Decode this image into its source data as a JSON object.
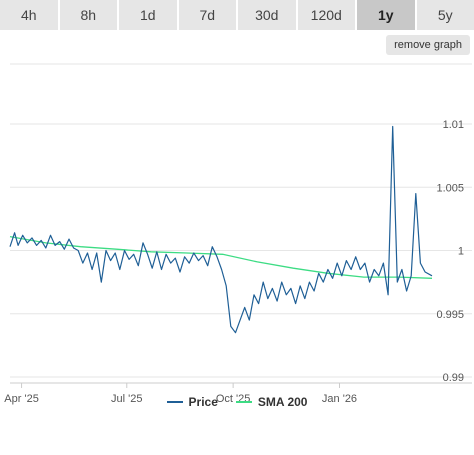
{
  "tabs": [
    {
      "label": "4h",
      "active": false
    },
    {
      "label": "8h",
      "active": false
    },
    {
      "label": "1d",
      "active": false
    },
    {
      "label": "7d",
      "active": false
    },
    {
      "label": "30d",
      "active": false
    },
    {
      "label": "120d",
      "active": false
    },
    {
      "label": "1y",
      "active": true
    },
    {
      "label": "5y",
      "active": false
    }
  ],
  "remove_graph_label": "remove graph",
  "colors": {
    "price": "#1f5f96",
    "sma": "#3ddc84",
    "grid": "#e6e6e6"
  },
  "chart_data": {
    "type": "line",
    "ylim": [
      0.99,
      1.01
    ],
    "y_ticks": [
      "1.01",
      "1.005",
      "1",
      "0.995",
      "0.99"
    ],
    "y_tick_values": [
      1.01,
      1.005,
      1.0,
      0.995,
      0.99
    ],
    "x_tick_labels": [
      "Apr '25",
      "Jul '25",
      "Oct '25",
      "Jan '26"
    ],
    "x_tick_dates": [
      "2025-04-01",
      "2025-07-01",
      "2025-10-01",
      "2026-01-01"
    ],
    "x_range": [
      "2025-03-22",
      "2026-03-22"
    ],
    "legend_position": "bottom",
    "series": [
      {
        "name": "Price",
        "color": "#1f5f96",
        "x": [
          "2025-03-22",
          "2025-03-26",
          "2025-03-29",
          "2025-04-02",
          "2025-04-06",
          "2025-04-10",
          "2025-04-14",
          "2025-04-18",
          "2025-04-22",
          "2025-04-26",
          "2025-04-30",
          "2025-05-04",
          "2025-05-08",
          "2025-05-12",
          "2025-05-16",
          "2025-05-20",
          "2025-05-24",
          "2025-05-28",
          "2025-06-01",
          "2025-06-05",
          "2025-06-09",
          "2025-06-13",
          "2025-06-17",
          "2025-06-21",
          "2025-06-25",
          "2025-06-29",
          "2025-07-03",
          "2025-07-07",
          "2025-07-11",
          "2025-07-15",
          "2025-07-19",
          "2025-07-23",
          "2025-07-27",
          "2025-07-31",
          "2025-08-04",
          "2025-08-08",
          "2025-08-12",
          "2025-08-16",
          "2025-08-20",
          "2025-08-24",
          "2025-08-28",
          "2025-09-01",
          "2025-09-05",
          "2025-09-09",
          "2025-09-13",
          "2025-09-17",
          "2025-09-21",
          "2025-09-25",
          "2025-09-29",
          "2025-10-03",
          "2025-10-07",
          "2025-10-11",
          "2025-10-15",
          "2025-10-19",
          "2025-10-23",
          "2025-10-27",
          "2025-10-31",
          "2025-11-04",
          "2025-11-08",
          "2025-11-12",
          "2025-11-16",
          "2025-11-20",
          "2025-11-24",
          "2025-11-28",
          "2025-12-02",
          "2025-12-06",
          "2025-12-10",
          "2025-12-14",
          "2025-12-18",
          "2025-12-22",
          "2025-12-26",
          "2025-12-30",
          "2026-01-03",
          "2026-01-07",
          "2026-01-11",
          "2026-01-15",
          "2026-01-19",
          "2026-01-23",
          "2026-01-27",
          "2026-01-31",
          "2026-02-04",
          "2026-02-08",
          "2026-02-12",
          "2026-02-16",
          "2026-02-20",
          "2026-02-24",
          "2026-02-28",
          "2026-03-04",
          "2026-03-08",
          "2026-03-12",
          "2026-03-16",
          "2026-03-22"
        ],
        "values": [
          1.0003,
          1.0014,
          1.0004,
          1.0012,
          1.0006,
          1.001,
          1.0004,
          1.0008,
          1.0002,
          1.0012,
          1.0004,
          1.0007,
          1.0001,
          1.0009,
          1.0002,
          1.0,
          0.999,
          0.9998,
          0.9985,
          0.9998,
          0.9975,
          1.0,
          0.9992,
          0.9998,
          0.9985,
          1.0,
          0.9993,
          0.9997,
          0.9988,
          1.0006,
          0.9997,
          0.9986,
          0.9999,
          0.9985,
          0.9997,
          0.999,
          0.9994,
          0.9983,
          0.9995,
          0.999,
          0.9998,
          0.9992,
          0.9996,
          0.9988,
          1.0003,
          0.9995,
          0.9985,
          0.9972,
          0.994,
          0.9935,
          0.9945,
          0.9955,
          0.9945,
          0.9965,
          0.9958,
          0.9975,
          0.9962,
          0.997,
          0.996,
          0.9975,
          0.9965,
          0.997,
          0.9958,
          0.9972,
          0.9962,
          0.9975,
          0.9968,
          0.9982,
          0.9975,
          0.9985,
          0.9978,
          0.999,
          0.998,
          0.9992,
          0.9985,
          0.9995,
          0.9985,
          0.999,
          0.9975,
          0.9985,
          0.998,
          0.999,
          0.9965,
          1.0098,
          0.9975,
          0.9985,
          0.9968,
          0.998,
          1.0045,
          0.999,
          0.9983,
          0.998
        ],
        "notes": "approximate daily closes read from chart"
      },
      {
        "name": "SMA 200",
        "color": "#3ddc84",
        "x": [
          "2025-03-22",
          "2025-04-22",
          "2025-05-22",
          "2025-06-22",
          "2025-07-22",
          "2025-08-22",
          "2025-09-22",
          "2025-10-22",
          "2025-11-22",
          "2025-12-22",
          "2026-01-22",
          "2026-02-22",
          "2026-03-22"
        ],
        "values": [
          1.0011,
          1.0006,
          1.0003,
          1.0001,
          0.9999,
          0.9998,
          0.9997,
          0.9991,
          0.9986,
          0.9982,
          0.9979,
          0.9979,
          0.9978
        ]
      }
    ]
  }
}
